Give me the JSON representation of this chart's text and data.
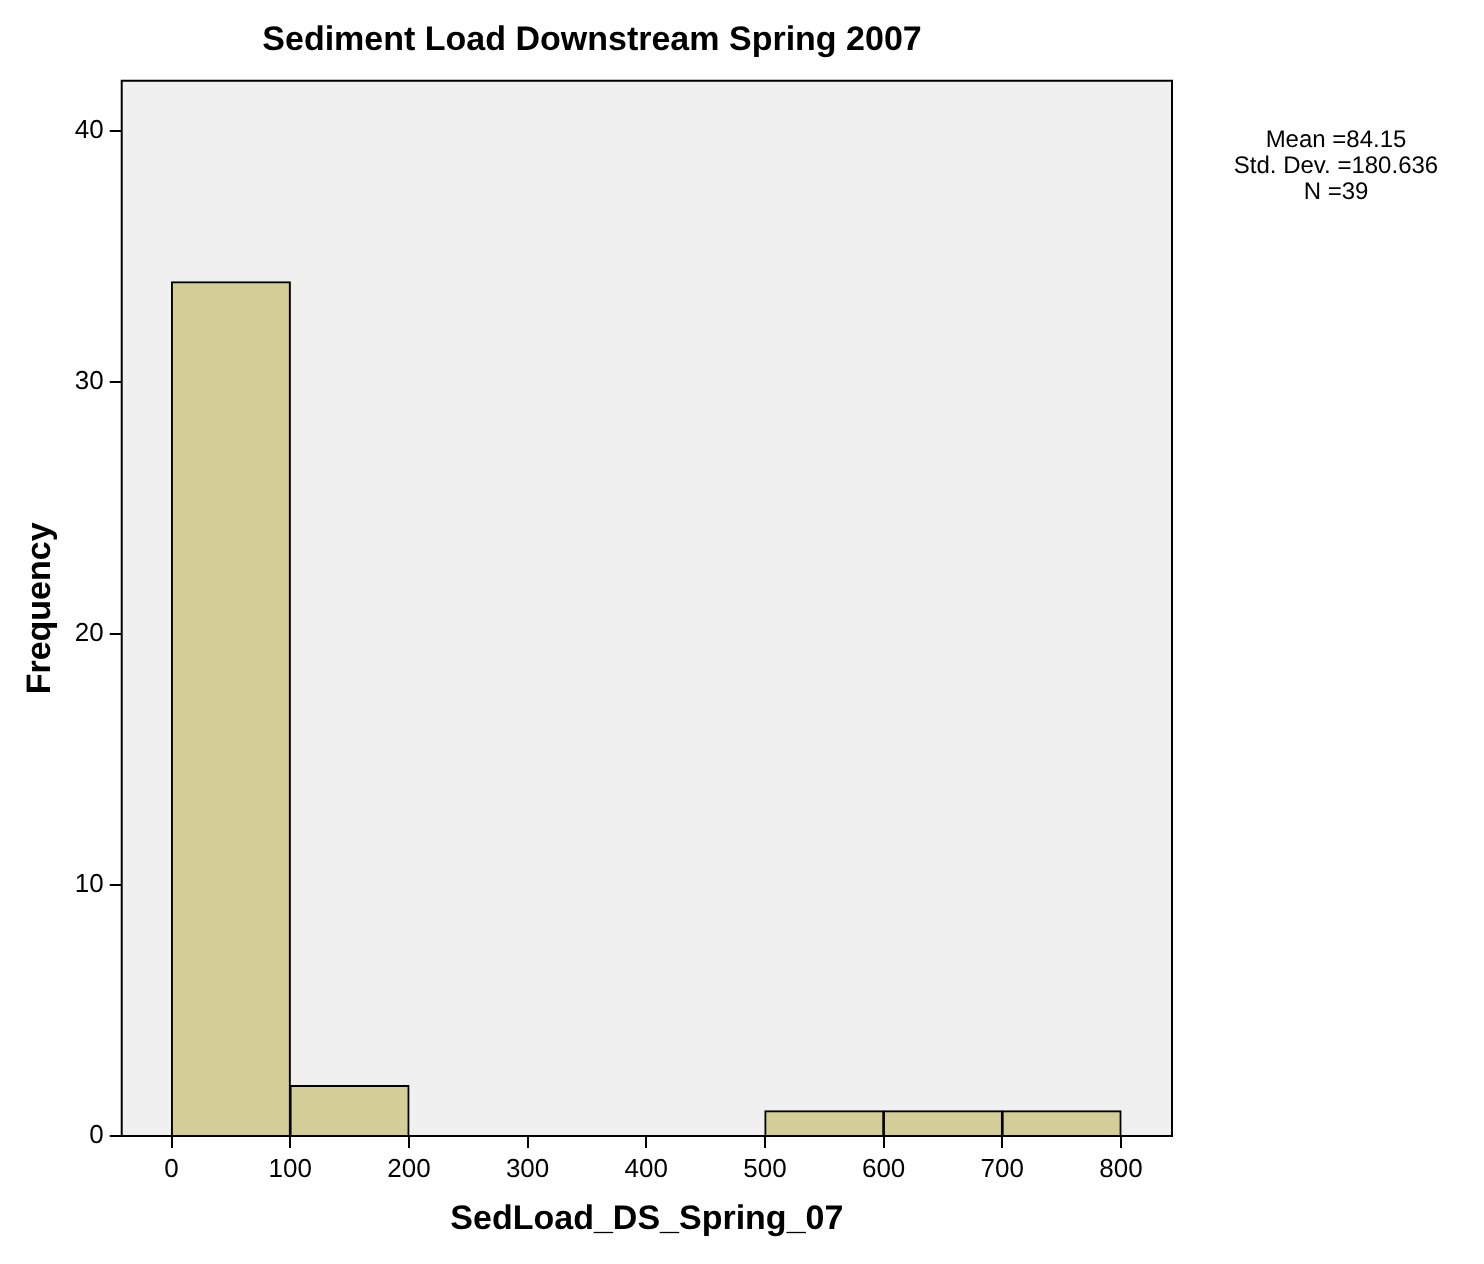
{
  "chart_data": {
    "type": "histogram",
    "title": "Sediment Load Downstream Spring 2007",
    "xlabel": "SedLoad_DS_Spring_07",
    "ylabel": "Frequency",
    "bins": [
      0,
      100,
      200,
      300,
      400,
      500,
      600,
      700,
      800
    ],
    "values": [
      34,
      2,
      0,
      0,
      0,
      1,
      1,
      1
    ],
    "color": "#d3ce97",
    "xlim": [
      -42,
      843
    ],
    "xticks": [
      0,
      100,
      200,
      300,
      400,
      500,
      600,
      700,
      800
    ],
    "ylim": [
      0,
      42
    ],
    "yticks": [
      0,
      10,
      20,
      30,
      40
    ],
    "grid": false,
    "legend": false,
    "annotations": [
      "Mean =84.15",
      "Std. Dev. =180.636",
      "N =39"
    ]
  }
}
